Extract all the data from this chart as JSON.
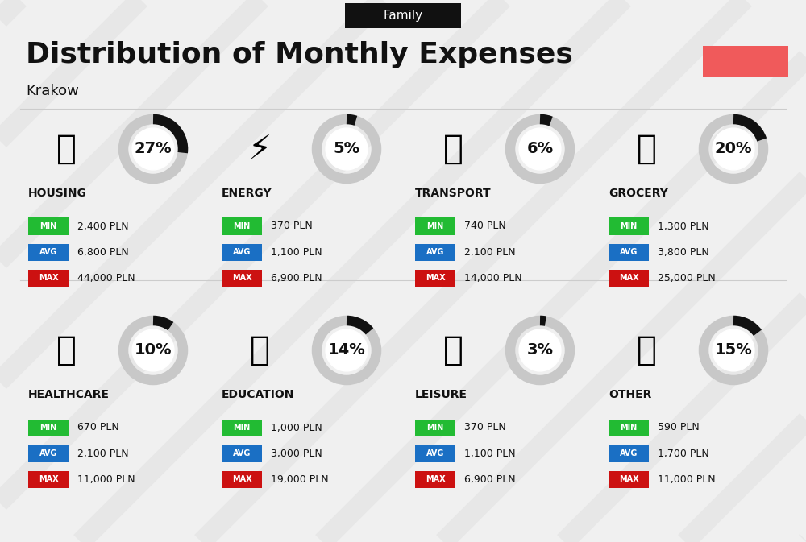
{
  "title": "Distribution of Monthly Expenses",
  "subtitle": "Krakow",
  "tag": "Family",
  "bg_color": "#f0f0f0",
  "accent_color": "#f05a5b",
  "categories": [
    {
      "name": "HOUSING",
      "pct": 27,
      "min_val": "2,400 PLN",
      "avg_val": "6,800 PLN",
      "max_val": "44,000 PLN",
      "col": 0,
      "row": 0
    },
    {
      "name": "ENERGY",
      "pct": 5,
      "min_val": "370 PLN",
      "avg_val": "1,100 PLN",
      "max_val": "6,900 PLN",
      "col": 1,
      "row": 0
    },
    {
      "name": "TRANSPORT",
      "pct": 6,
      "min_val": "740 PLN",
      "avg_val": "2,100 PLN",
      "max_val": "14,000 PLN",
      "col": 2,
      "row": 0
    },
    {
      "name": "GROCERY",
      "pct": 20,
      "min_val": "1,300 PLN",
      "avg_val": "3,800 PLN",
      "max_val": "25,000 PLN",
      "col": 3,
      "row": 0
    },
    {
      "name": "HEALTHCARE",
      "pct": 10,
      "min_val": "670 PLN",
      "avg_val": "2,100 PLN",
      "max_val": "11,000 PLN",
      "col": 0,
      "row": 1
    },
    {
      "name": "EDUCATION",
      "pct": 14,
      "min_val": "1,000 PLN",
      "avg_val": "3,000 PLN",
      "max_val": "19,000 PLN",
      "col": 1,
      "row": 1
    },
    {
      "name": "LEISURE",
      "pct": 3,
      "min_val": "370 PLN",
      "avg_val": "1,100 PLN",
      "max_val": "6,900 PLN",
      "col": 2,
      "row": 1
    },
    {
      "name": "OTHER",
      "pct": 15,
      "min_val": "590 PLN",
      "avg_val": "1,700 PLN",
      "max_val": "11,000 PLN",
      "col": 3,
      "row": 1
    }
  ],
  "min_color": "#22bb33",
  "avg_color": "#1a6fc4",
  "max_color": "#cc1111",
  "ring_bg_color": "#c8c8c8",
  "ring_fg_color": "#111111",
  "title_fontsize": 26,
  "subtitle_fontsize": 13,
  "tag_fontsize": 11,
  "cat_fontsize": 10,
  "pct_fontsize": 14,
  "badge_fontsize": 7,
  "val_fontsize": 9
}
